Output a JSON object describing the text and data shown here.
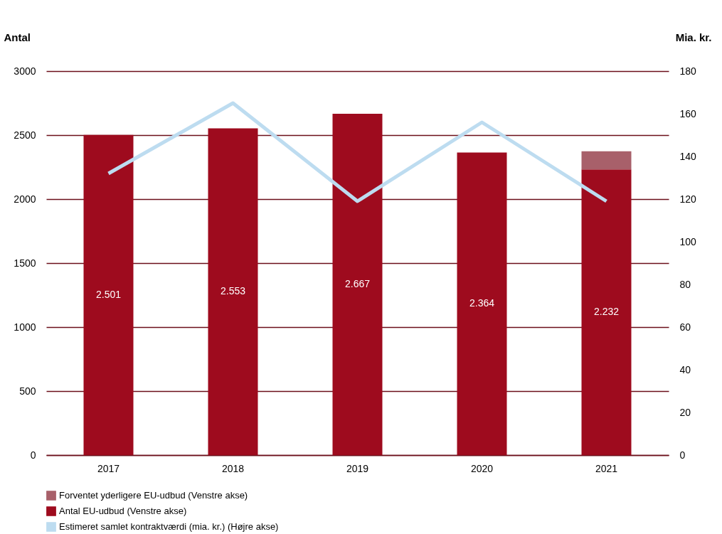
{
  "chart_data": {
    "type": "bar",
    "stacked": true,
    "categories": [
      "2017",
      "2018",
      "2019",
      "2020",
      "2021"
    ],
    "ylabel": "Antal",
    "y2label": "Mia. kr.",
    "ylim": [
      0,
      3000
    ],
    "yticks": [
      0,
      500,
      {
        "value": 1000,
        "label": "1000"
      },
      {
        "value": 1500,
        "label": "1500"
      },
      {
        "value": 2000,
        "label": "2000"
      },
      {
        "value": 2500,
        "label": "2500"
      },
      {
        "value": 3000,
        "label": "3000"
      }
    ],
    "y2lim": [
      0,
      180
    ],
    "y2ticks": [
      0,
      20,
      40,
      60,
      80,
      100,
      120,
      140,
      160,
      180
    ],
    "grid": "y",
    "legend": "bottom left",
    "series": [
      {
        "name": "Antal EU-udbud (Venstre akse)",
        "color": "#9e0b1e",
        "values": [
          2501,
          2553,
          2667,
          2364,
          2232
        ],
        "value_labels": [
          "2.501",
          "2.553",
          "2.667",
          "2.364",
          "2.232"
        ]
      },
      {
        "name": "Forventet yderligere EU-udbud (Venstre akse)",
        "color": "#a8606a",
        "values": [
          null,
          null,
          null,
          null,
          142
        ]
      },
      {
        "name": "Estimeret samlet kontraktværdi (mia. kr.) (Højre akse)",
        "type": "line",
        "axis": "y2",
        "color": "#bddcf0",
        "values": [
          132,
          165,
          119,
          156,
          119
        ]
      }
    ]
  }
}
